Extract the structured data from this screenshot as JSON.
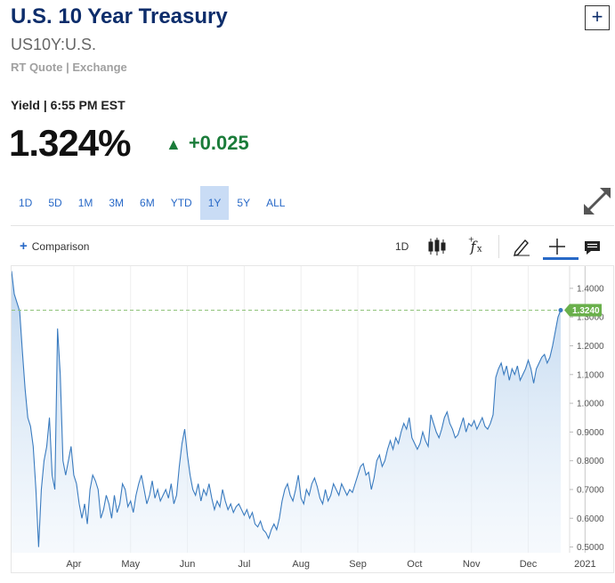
{
  "header": {
    "title": "U.S. 10 Year Treasury",
    "symbol": "US10Y:U.S.",
    "quote_type": "RT Quote | Exchange",
    "plus_label": "+"
  },
  "quote": {
    "yield_label": "Yield | 6:55 PM EST",
    "price": "1.324%",
    "arrow": "▲",
    "change": "+0.025",
    "change_color": "#1b7c3a"
  },
  "ranges": [
    "1D",
    "5D",
    "1M",
    "3M",
    "6M",
    "YTD",
    "1Y",
    "5Y",
    "ALL"
  ],
  "active_range": "1Y",
  "toolbar": {
    "comparison_plus": "+",
    "comparison_label": "Comparison",
    "interval_label": "1D",
    "icons": [
      "candlestick-icon",
      "function-icon",
      "draw-icon",
      "crosshair-icon",
      "comment-icon"
    ]
  },
  "chart_data": {
    "type": "area",
    "line_color": "#3a7bbf",
    "fill_color": "#c8dcf1",
    "last_value_label": "1.3240",
    "last_value_color": "#6ab04c",
    "y_ticks": [
      "1.4000",
      "1.3000",
      "1.2000",
      "1.1000",
      "1.0000",
      "0.9000",
      "0.8000",
      "0.7000",
      "0.6000",
      "0.5000"
    ],
    "ylim": [
      0.48,
      1.44
    ],
    "x_ticks": [
      "Apr",
      "May",
      "Jun",
      "Jul",
      "Aug",
      "Sep",
      "Oct",
      "Nov",
      "Dec",
      "2021"
    ],
    "x_tick_index": [
      23,
      44,
      65,
      86,
      107,
      128,
      149,
      170,
      191,
      212
    ],
    "series": [
      {
        "values": [
          1.46,
          1.38,
          1.35,
          1.32,
          1.18,
          1.05,
          0.95,
          0.92,
          0.85,
          0.7,
          0.5,
          0.7,
          0.8,
          0.85,
          0.95,
          0.75,
          0.7,
          1.26,
          1.1,
          0.8,
          0.75,
          0.8,
          0.85,
          0.75,
          0.72,
          0.65,
          0.6,
          0.65,
          0.58,
          0.7,
          0.75,
          0.73,
          0.7,
          0.6,
          0.63,
          0.68,
          0.65,
          0.6,
          0.68,
          0.62,
          0.65,
          0.72,
          0.7,
          0.64,
          0.66,
          0.62,
          0.68,
          0.72,
          0.75,
          0.7,
          0.65,
          0.68,
          0.73,
          0.67,
          0.7,
          0.66,
          0.68,
          0.7,
          0.67,
          0.72,
          0.65,
          0.68,
          0.78,
          0.86,
          0.91,
          0.82,
          0.75,
          0.7,
          0.68,
          0.72,
          0.66,
          0.7,
          0.68,
          0.72,
          0.67,
          0.63,
          0.66,
          0.64,
          0.7,
          0.66,
          0.63,
          0.65,
          0.62,
          0.64,
          0.65,
          0.63,
          0.61,
          0.63,
          0.6,
          0.62,
          0.58,
          0.57,
          0.59,
          0.56,
          0.55,
          0.53,
          0.56,
          0.58,
          0.56,
          0.6,
          0.66,
          0.7,
          0.72,
          0.68,
          0.66,
          0.7,
          0.75,
          0.67,
          0.65,
          0.7,
          0.68,
          0.72,
          0.74,
          0.71,
          0.67,
          0.65,
          0.7,
          0.66,
          0.68,
          0.72,
          0.7,
          0.68,
          0.72,
          0.7,
          0.68,
          0.7,
          0.69,
          0.72,
          0.75,
          0.78,
          0.79,
          0.75,
          0.76,
          0.7,
          0.74,
          0.8,
          0.82,
          0.78,
          0.8,
          0.84,
          0.87,
          0.84,
          0.88,
          0.86,
          0.9,
          0.93,
          0.91,
          0.95,
          0.88,
          0.86,
          0.84,
          0.86,
          0.9,
          0.87,
          0.85,
          0.96,
          0.93,
          0.9,
          0.88,
          0.91,
          0.95,
          0.97,
          0.93,
          0.91,
          0.88,
          0.89,
          0.92,
          0.95,
          0.9,
          0.93,
          0.92,
          0.94,
          0.91,
          0.93,
          0.95,
          0.92,
          0.91,
          0.93,
          0.96,
          1.09,
          1.12,
          1.14,
          1.1,
          1.13,
          1.08,
          1.12,
          1.1,
          1.13,
          1.08,
          1.1,
          1.12,
          1.15,
          1.12,
          1.07,
          1.12,
          1.14,
          1.16,
          1.17,
          1.14,
          1.16,
          1.2,
          1.25,
          1.3,
          1.324
        ]
      }
    ]
  }
}
